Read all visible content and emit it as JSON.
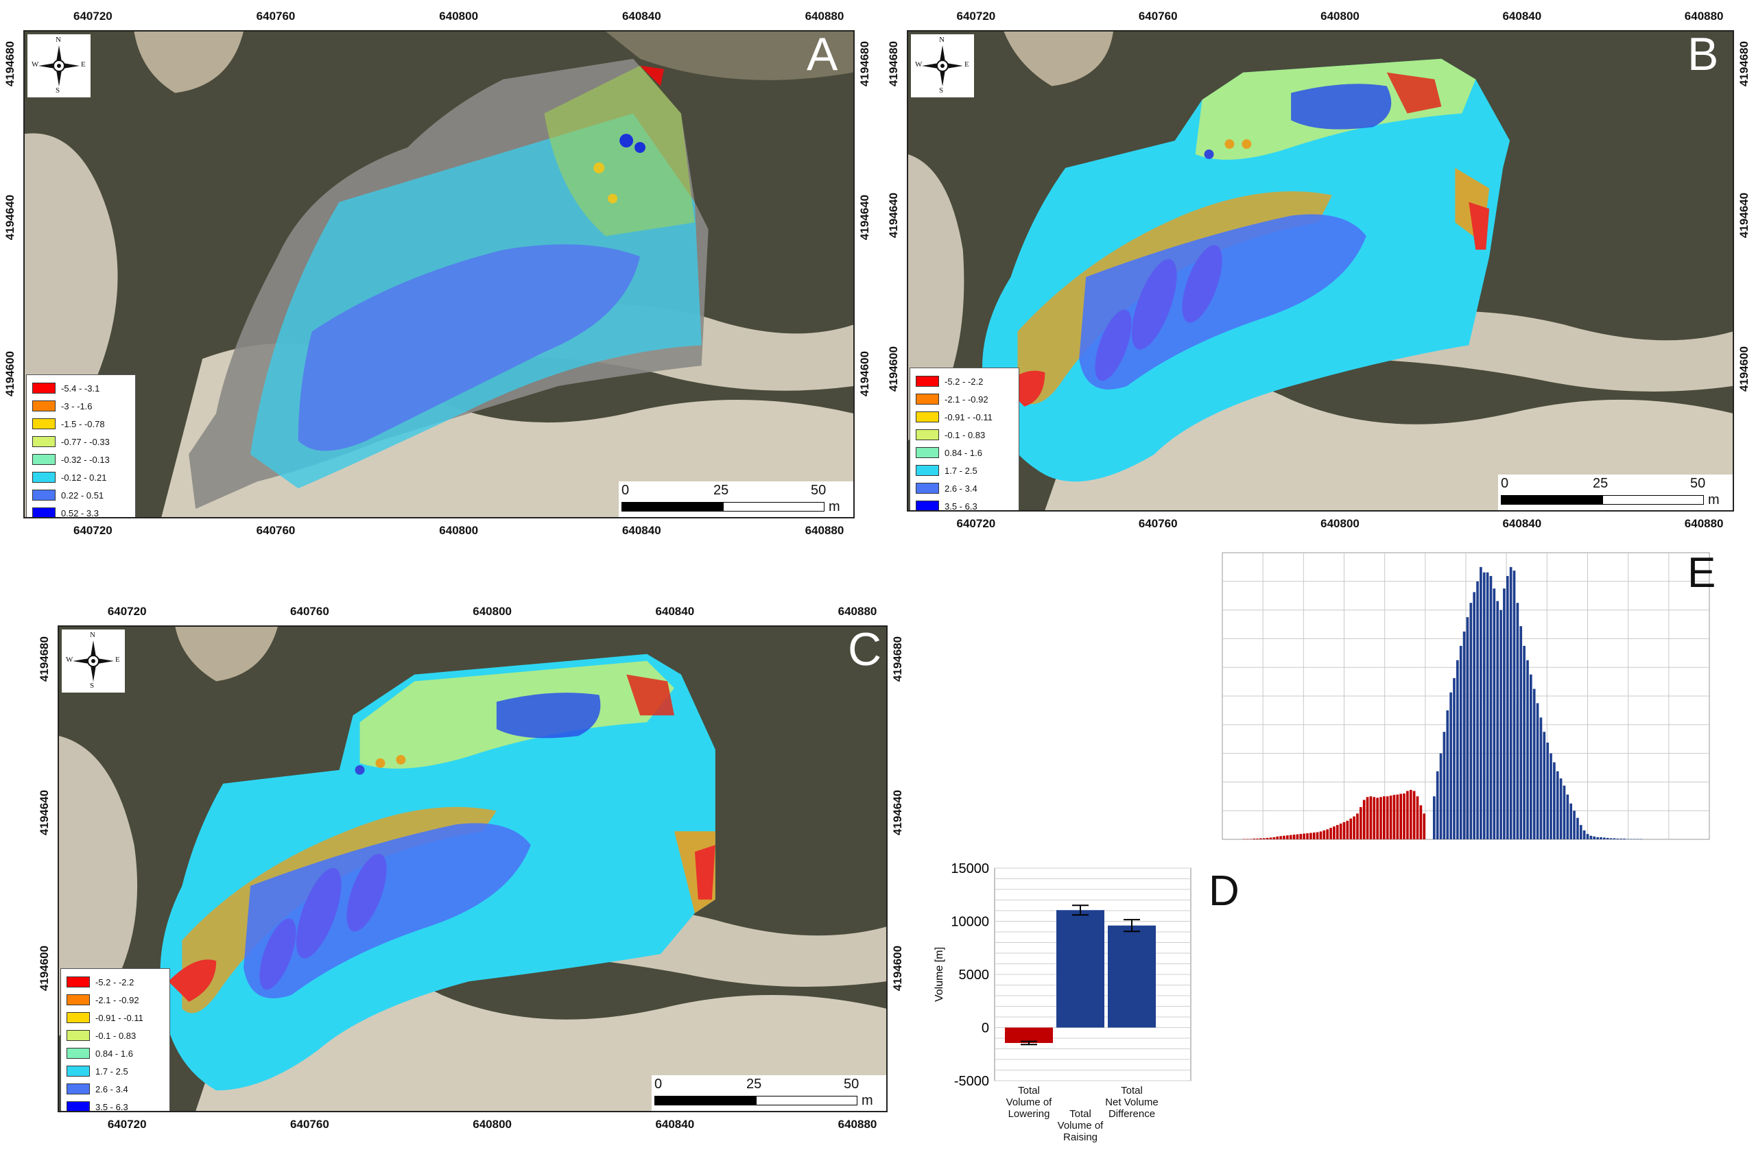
{
  "figure": {
    "panels": [
      {
        "id": "A",
        "letter": "A",
        "x_ticks": [
          "640720",
          "640760",
          "640800",
          "640840",
          "640880"
        ],
        "y_ticks": [
          "4194680",
          "4194640",
          "4194600"
        ],
        "legend": [
          {
            "label": "-5.4 - -3.1",
            "color": "#ff0000"
          },
          {
            "label": "-3 - -1.6",
            "color": "#ff8000"
          },
          {
            "label": "-1.5 - -0.78",
            "color": "#ffd700"
          },
          {
            "label": "-0.77 - -0.33",
            "color": "#d4f26b"
          },
          {
            "label": "-0.32 - -0.13",
            "color": "#7ff0b8"
          },
          {
            "label": "-0.12 - 0.21",
            "color": "#2fd6f2"
          },
          {
            "label": "0.22 - 0.51",
            "color": "#4a76f5"
          },
          {
            "label": "0.52 - 3.3",
            "color": "#0000ff"
          }
        ],
        "scalebar": {
          "labels": [
            "0",
            "25",
            "50"
          ],
          "unit": "m"
        }
      },
      {
        "id": "B",
        "letter": "B",
        "x_ticks": [
          "640720",
          "640760",
          "640800",
          "640840",
          "640880"
        ],
        "y_ticks": [
          "4194680",
          "4194640",
          "4194600"
        ],
        "legend": [
          {
            "label": "-5.2 - -2.2",
            "color": "#ff0000"
          },
          {
            "label": "-2.1 - -0.92",
            "color": "#ff8000"
          },
          {
            "label": "-0.91 - -0.11",
            "color": "#ffd700"
          },
          {
            "label": "-0.1 - 0.83",
            "color": "#d4f26b"
          },
          {
            "label": "0.84 - 1.6",
            "color": "#7ff0b8"
          },
          {
            "label": "1.7 - 2.5",
            "color": "#2fd6f2"
          },
          {
            "label": "2.6 - 3.4",
            "color": "#4a76f5"
          },
          {
            "label": "3.5 - 6.3",
            "color": "#0000ff"
          }
        ],
        "scalebar": {
          "labels": [
            "0",
            "25",
            "50"
          ],
          "unit": "m"
        }
      },
      {
        "id": "C",
        "letter": "C",
        "x_ticks": [
          "640720",
          "640760",
          "640800",
          "640840",
          "640880"
        ],
        "y_ticks": [
          "4194680",
          "4194640",
          "4194600"
        ],
        "legend": [
          {
            "label": "-5.2 - -2.2",
            "color": "#ff0000"
          },
          {
            "label": "-2.1 - -0.92",
            "color": "#ff8000"
          },
          {
            "label": "-0.91 - -0.11",
            "color": "#ffd700"
          },
          {
            "label": "-0.1 - 0.83",
            "color": "#d4f26b"
          },
          {
            "label": "0.84 - 1.6",
            "color": "#7ff0b8"
          },
          {
            "label": "1.7 - 2.5",
            "color": "#2fd6f2"
          },
          {
            "label": "2.6 - 3.4",
            "color": "#4a76f5"
          },
          {
            "label": "3.5 - 6.3",
            "color": "#0000ff"
          }
        ],
        "scalebar": {
          "labels": [
            "0",
            "25",
            "50"
          ],
          "unit": "m"
        }
      }
    ],
    "compass": {
      "n": "N",
      "s": "S",
      "e": "E",
      "w": "W"
    },
    "panel_d_letter": "D",
    "panel_e_letter": "E"
  },
  "chart_data": [
    {
      "panel": "D",
      "type": "bar",
      "categories": [
        "Total Volume of Lowering",
        "Total Volume of Raising",
        "Total Net Volume Difference"
      ],
      "category_lines": [
        [
          "Total",
          "Volume of",
          "Lowering"
        ],
        [
          "Total",
          "Volume of",
          "Raising"
        ],
        [
          "Total",
          "Net Volume",
          "Difference"
        ]
      ],
      "values": [
        -1450,
        11050,
        9600
      ],
      "error": [
        150,
        450,
        550
      ],
      "colors": [
        "#c00000",
        "#1f3f8f",
        "#1f3f8f"
      ],
      "ylabel": "Volume [m]",
      "yticks": [
        15000,
        10000,
        5000,
        0,
        -5000
      ],
      "ylim": [
        -5000,
        15000
      ],
      "grid": true
    },
    {
      "panel": "E",
      "type": "bar",
      "title": "",
      "xlabel": "",
      "ylabel": "",
      "bins": 140,
      "xlim": [
        -4.6,
        6.3
      ],
      "ylim": [
        0,
        800
      ],
      "negative_color": "#c00000",
      "positive_color": "#1f3f8f",
      "counts": [
        0,
        0,
        0,
        0,
        0,
        0,
        1,
        1,
        1,
        2,
        2,
        3,
        3,
        4,
        5,
        6,
        8,
        9,
        10,
        11,
        12,
        13,
        14,
        15,
        16,
        17,
        18,
        19,
        20,
        22,
        25,
        28,
        32,
        36,
        40,
        44,
        48,
        52,
        58,
        64,
        72,
        90,
        110,
        118,
        120,
        118,
        116,
        118,
        120,
        120,
        122,
        124,
        125,
        127,
        128,
        135,
        138,
        135,
        120,
        95,
        72,
        0,
        0,
        120,
        190,
        240,
        300,
        360,
        410,
        450,
        500,
        540,
        580,
        620,
        660,
        690,
        720,
        760,
        745,
        745,
        735,
        700,
        665,
        640,
        700,
        735,
        760,
        750,
        660,
        595,
        540,
        500,
        460,
        420,
        380,
        340,
        300,
        270,
        240,
        215,
        190,
        170,
        150,
        125,
        100,
        80,
        60,
        40,
        25,
        15,
        10,
        8,
        6,
        6,
        5,
        4,
        3,
        3,
        2,
        2,
        2,
        1,
        1,
        1,
        1,
        1,
        0,
        0,
        0,
        0,
        0,
        0,
        0,
        0,
        0,
        0,
        0,
        0,
        0,
        0,
        0,
        0,
        0,
        0,
        0,
        0
      ],
      "split_index": 61
    }
  ]
}
